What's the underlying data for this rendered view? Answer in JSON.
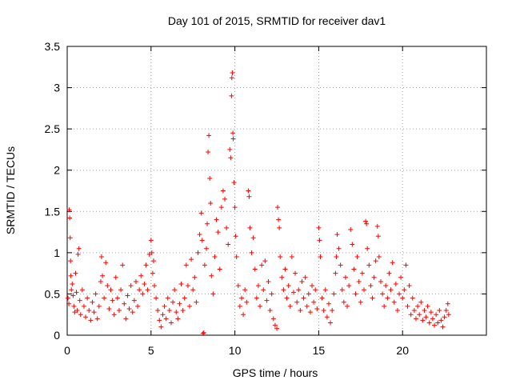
{
  "chart_data": {
    "type": "scatter",
    "title": "Day 101 of 2015, SRMTID for receiver dav1",
    "xlabel": "GPS time / hours",
    "ylabel": "SRMTID / TECUs",
    "xlim": [
      0,
      25
    ],
    "ylim": [
      0,
      3.5
    ],
    "x_ticks": [
      0,
      5,
      10,
      15,
      20
    ],
    "x_tick_labels": [
      "0",
      "5",
      "10",
      "15",
      "20"
    ],
    "y_ticks": [
      0,
      0.5,
      1,
      1.5,
      2,
      2.5,
      3,
      3.5
    ],
    "y_tick_labels": [
      "0",
      "0.5",
      "1",
      "1.5",
      "2",
      "2.5",
      "3",
      "3.5"
    ],
    "grid": true,
    "marker": "plus",
    "series": [
      {
        "name": "SRMTID",
        "color": "#ff0000",
        "points": [
          [
            0.05,
            0.45
          ],
          [
            0.1,
            0.38
          ],
          [
            0.12,
            1.52
          ],
          [
            0.15,
            1.42
          ],
          [
            0.18,
            1.18
          ],
          [
            0.2,
            0.9
          ],
          [
            0.22,
            0.72
          ],
          [
            0.25,
            0.55
          ],
          [
            0.3,
            0.62
          ],
          [
            0.35,
            0.48
          ],
          [
            0.4,
            0.35
          ],
          [
            0.45,
            0.28
          ],
          [
            0.5,
            0.75
          ],
          [
            0.55,
            0.52
          ],
          [
            0.6,
            0.3
          ],
          [
            0.65,
            0.98
          ],
          [
            0.7,
            1.05
          ],
          [
            0.75,
            0.42
          ],
          [
            0.8,
            0.25
          ],
          [
            0.9,
            0.55
          ],
          [
            1.0,
            0.35
          ],
          [
            1.1,
            0.22
          ],
          [
            1.2,
            0.45
          ],
          [
            1.3,
            0.3
          ],
          [
            1.4,
            0.18
          ],
          [
            1.5,
            0.4
          ],
          [
            1.6,
            0.28
          ],
          [
            1.7,
            0.5
          ],
          [
            1.8,
            0.2
          ],
          [
            1.9,
            0.35
          ],
          [
            2.0,
            0.65
          ],
          [
            2.05,
            0.95
          ],
          [
            2.1,
            0.72
          ],
          [
            2.2,
            0.45
          ],
          [
            2.3,
            0.88
          ],
          [
            2.4,
            0.6
          ],
          [
            2.5,
            0.32
          ],
          [
            2.6,
            0.55
          ],
          [
            2.7,
            0.42
          ],
          [
            2.8,
            0.25
          ],
          [
            2.9,
            0.7
          ],
          [
            3.0,
            0.45
          ],
          [
            3.1,
            0.3
          ],
          [
            3.2,
            0.55
          ],
          [
            3.3,
            0.85
          ],
          [
            3.4,
            0.38
          ],
          [
            3.5,
            0.2
          ],
          [
            3.6,
            0.48
          ],
          [
            3.7,
            0.32
          ],
          [
            3.8,
            0.6
          ],
          [
            3.9,
            0.28
          ],
          [
            4.0,
            0.42
          ],
          [
            4.1,
            0.65
          ],
          [
            4.2,
            0.35
          ],
          [
            4.3,
            0.55
          ],
          [
            4.4,
            0.72
          ],
          [
            4.5,
            0.5
          ],
          [
            4.6,
            0.62
          ],
          [
            4.7,
            0.85
          ],
          [
            4.8,
            0.55
          ],
          [
            4.9,
            0.98
          ],
          [
            5.0,
            1.15
          ],
          [
            5.05,
            1.0
          ],
          [
            5.1,
            0.75
          ],
          [
            5.15,
            0.9
          ],
          [
            5.2,
            0.6
          ],
          [
            5.3,
            0.45
          ],
          [
            5.4,
            0.3
          ],
          [
            5.5,
            0.18
          ],
          [
            5.6,
            0.1
          ],
          [
            5.7,
            0.25
          ],
          [
            5.8,
            0.35
          ],
          [
            5.9,
            0.2
          ],
          [
            6.0,
            0.45
          ],
          [
            6.1,
            0.3
          ],
          [
            6.2,
            0.15
          ],
          [
            6.3,
            0.4
          ],
          [
            6.4,
            0.55
          ],
          [
            6.5,
            0.28
          ],
          [
            6.6,
            0.2
          ],
          [
            6.7,
            0.38
          ],
          [
            6.8,
            0.62
          ],
          [
            6.9,
            0.3
          ],
          [
            7.0,
            0.45
          ],
          [
            7.1,
            0.85
          ],
          [
            7.2,
            0.6
          ],
          [
            7.3,
            0.35
          ],
          [
            7.4,
            0.92
          ],
          [
            7.5,
            0.55
          ],
          [
            7.6,
            0.7
          ],
          [
            7.7,
            0.4
          ],
          [
            7.8,
            1.0
          ],
          [
            7.9,
            1.22
          ],
          [
            8.0,
            1.48
          ],
          [
            8.05,
            1.15
          ],
          [
            8.1,
            0.02
          ],
          [
            8.15,
            0.03
          ],
          [
            8.2,
            0.85
          ],
          [
            8.3,
            1.05
          ],
          [
            8.35,
            1.35
          ],
          [
            8.4,
            2.22
          ],
          [
            8.45,
            2.42
          ],
          [
            8.5,
            1.9
          ],
          [
            8.55,
            1.6
          ],
          [
            8.6,
            0.72
          ],
          [
            8.7,
            0.5
          ],
          [
            8.8,
            0.95
          ],
          [
            8.9,
            1.4
          ],
          [
            9.0,
            1.25
          ],
          [
            9.1,
            0.8
          ],
          [
            9.2,
            1.55
          ],
          [
            9.3,
            1.75
          ],
          [
            9.4,
            1.65
          ],
          [
            9.5,
            1.3
          ],
          [
            9.6,
            1.1
          ],
          [
            9.7,
            2.25
          ],
          [
            9.75,
            2.15
          ],
          [
            9.8,
            2.9
          ],
          [
            9.82,
            3.12
          ],
          [
            9.85,
            3.18
          ],
          [
            9.88,
            2.45
          ],
          [
            9.9,
            2.38
          ],
          [
            9.95,
            1.85
          ],
          [
            10.0,
            1.55
          ],
          [
            10.05,
            1.2
          ],
          [
            10.1,
            0.95
          ],
          [
            10.2,
            0.6
          ],
          [
            10.3,
            0.35
          ],
          [
            10.4,
            0.45
          ],
          [
            10.5,
            0.25
          ],
          [
            10.6,
            0.55
          ],
          [
            10.7,
            0.4
          ],
          [
            10.8,
            1.75
          ],
          [
            10.85,
            1.68
          ],
          [
            10.9,
            1.3
          ],
          [
            11.0,
            1.0
          ],
          [
            11.1,
            1.18
          ],
          [
            11.2,
            0.8
          ],
          [
            11.3,
            0.45
          ],
          [
            11.4,
            0.6
          ],
          [
            11.5,
            0.35
          ],
          [
            11.6,
            0.85
          ],
          [
            11.7,
            0.55
          ],
          [
            11.8,
            0.9
          ],
          [
            11.9,
            0.42
          ],
          [
            12.0,
            0.65
          ],
          [
            12.1,
            0.3
          ],
          [
            12.2,
            0.5
          ],
          [
            12.3,
            0.2
          ],
          [
            12.4,
            0.12
          ],
          [
            12.5,
            0.08
          ],
          [
            12.55,
            1.55
          ],
          [
            12.6,
            1.4
          ],
          [
            12.65,
            1.3
          ],
          [
            12.7,
            0.95
          ],
          [
            12.8,
            0.7
          ],
          [
            12.9,
            0.55
          ],
          [
            13.0,
            0.8
          ],
          [
            13.1,
            0.45
          ],
          [
            13.2,
            0.6
          ],
          [
            13.3,
            0.35
          ],
          [
            13.4,
            0.95
          ],
          [
            13.5,
            0.52
          ],
          [
            13.6,
            0.75
          ],
          [
            13.7,
            0.4
          ],
          [
            13.8,
            0.55
          ],
          [
            13.9,
            0.3
          ],
          [
            14.0,
            0.65
          ],
          [
            14.1,
            0.45
          ],
          [
            14.2,
            0.7
          ],
          [
            14.3,
            0.35
          ],
          [
            14.4,
            0.5
          ],
          [
            14.5,
            0.28
          ],
          [
            14.6,
            0.6
          ],
          [
            14.7,
            0.4
          ],
          [
            14.8,
            0.55
          ],
          [
            14.9,
            0.32
          ],
          [
            15.0,
            1.3
          ],
          [
            15.05,
            1.15
          ],
          [
            15.1,
            0.95
          ],
          [
            15.2,
            0.45
          ],
          [
            15.3,
            0.3
          ],
          [
            15.4,
            0.55
          ],
          [
            15.5,
            0.22
          ],
          [
            15.6,
            0.38
          ],
          [
            15.7,
            0.15
          ],
          [
            15.8,
            0.3
          ],
          [
            15.9,
            0.5
          ],
          [
            16.0,
            0.75
          ],
          [
            16.05,
            0.95
          ],
          [
            16.1,
            1.22
          ],
          [
            16.2,
            1.05
          ],
          [
            16.3,
            0.85
          ],
          [
            16.4,
            0.55
          ],
          [
            16.5,
            0.4
          ],
          [
            16.6,
            0.7
          ],
          [
            16.7,
            0.35
          ],
          [
            16.8,
            0.6
          ],
          [
            16.9,
            1.28
          ],
          [
            17.0,
            1.1
          ],
          [
            17.1,
            0.8
          ],
          [
            17.2,
            0.5
          ],
          [
            17.3,
            0.95
          ],
          [
            17.4,
            0.65
          ],
          [
            17.5,
            0.4
          ],
          [
            17.6,
            0.75
          ],
          [
            17.7,
            0.55
          ],
          [
            17.8,
            1.38
          ],
          [
            17.85,
            1.35
          ],
          [
            17.9,
            1.05
          ],
          [
            18.0,
            0.85
          ],
          [
            18.1,
            0.6
          ],
          [
            18.2,
            0.45
          ],
          [
            18.3,
            0.7
          ],
          [
            18.4,
            0.9
          ],
          [
            18.5,
            1.32
          ],
          [
            18.55,
            1.2
          ],
          [
            18.6,
            0.95
          ],
          [
            18.7,
            0.65
          ],
          [
            18.8,
            0.5
          ],
          [
            18.9,
            0.35
          ],
          [
            19.0,
            0.6
          ],
          [
            19.1,
            0.45
          ],
          [
            19.2,
            0.75
          ],
          [
            19.3,
            0.55
          ],
          [
            19.4,
            0.88
          ],
          [
            19.5,
            0.4
          ],
          [
            19.6,
            0.62
          ],
          [
            19.7,
            0.3
          ],
          [
            19.8,
            0.5
          ],
          [
            19.9,
            0.7
          ],
          [
            20.0,
            0.45
          ],
          [
            20.1,
            0.55
          ],
          [
            20.2,
            0.85
          ],
          [
            20.3,
            0.35
          ],
          [
            20.4,
            0.6
          ],
          [
            20.5,
            0.25
          ],
          [
            20.6,
            0.45
          ],
          [
            20.7,
            0.3
          ],
          [
            20.8,
            0.2
          ],
          [
            20.9,
            0.35
          ],
          [
            21.0,
            0.25
          ],
          [
            21.1,
            0.4
          ],
          [
            21.2,
            0.18
          ],
          [
            21.3,
            0.3
          ],
          [
            21.4,
            0.22
          ],
          [
            21.5,
            0.35
          ],
          [
            21.6,
            0.15
          ],
          [
            21.7,
            0.28
          ],
          [
            21.8,
            0.2
          ],
          [
            21.9,
            0.12
          ],
          [
            22.0,
            0.25
          ],
          [
            22.1,
            0.15
          ],
          [
            22.2,
            0.3
          ],
          [
            22.3,
            0.18
          ],
          [
            22.4,
            0.1
          ],
          [
            22.5,
            0.22
          ],
          [
            22.6,
            0.3
          ],
          [
            22.7,
            0.38
          ],
          [
            22.75,
            0.25
          ]
        ]
      }
    ]
  }
}
